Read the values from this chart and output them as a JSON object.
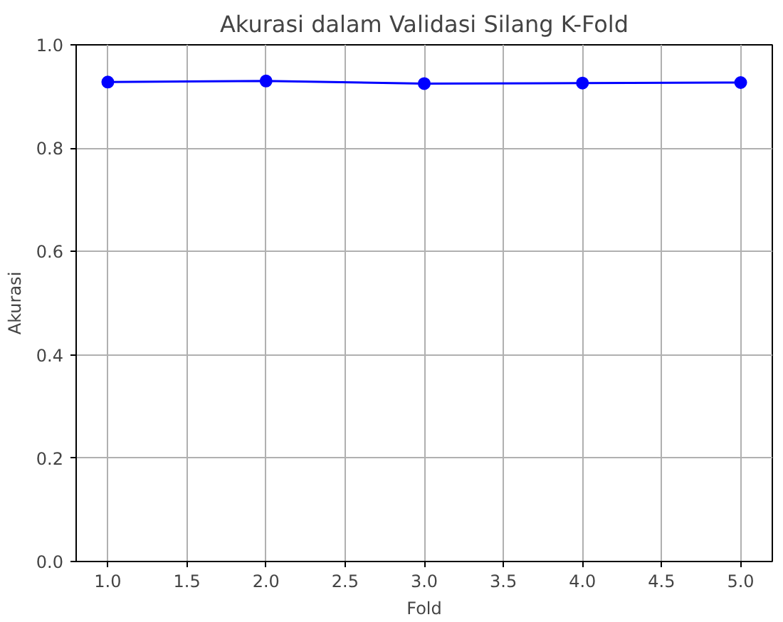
{
  "chart_data": {
    "type": "line",
    "title": "Akurasi dalam Validasi Silang K-Fold",
    "xlabel": "Fold",
    "ylabel": "Akurasi",
    "x": [
      1,
      2,
      3,
      4,
      5
    ],
    "series": [
      {
        "color": "#0000ff",
        "values": [
          0.928,
          0.93,
          0.925,
          0.926,
          0.927
        ]
      }
    ],
    "xlim": [
      0.8,
      5.2
    ],
    "xticks": [
      {
        "value": 1,
        "label": "1.0"
      },
      {
        "value": 1.5,
        "label": "1.5"
      },
      {
        "value": 2,
        "label": "2.0"
      },
      {
        "value": 2.5,
        "label": "2.5"
      },
      {
        "value": 3,
        "label": "3.0"
      },
      {
        "value": 3.5,
        "label": "3.5"
      },
      {
        "value": 4,
        "label": "4.0"
      },
      {
        "value": 4.5,
        "label": "4.5"
      },
      {
        "value": 5,
        "label": "5.0"
      }
    ],
    "ylim": [
      0,
      1.0
    ],
    "yticks": [
      {
        "value": 0,
        "label": "0.0"
      },
      {
        "value": 0.2,
        "label": "0.2"
      },
      {
        "value": 0.4,
        "label": "0.4"
      },
      {
        "value": 0.6,
        "label": "0.6"
      },
      {
        "value": 0.8,
        "label": "0.8"
      },
      {
        "value": 1.0,
        "label": "1.0"
      }
    ],
    "grid": true,
    "marker": "circle",
    "line_style": "solid"
  }
}
